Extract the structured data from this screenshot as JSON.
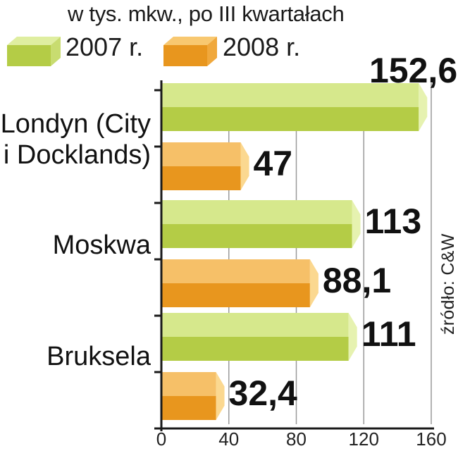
{
  "subtitle": "w tys. mkw., po III kwartałach",
  "source": "źródło: C&W",
  "legend": [
    {
      "label": "2007 r.",
      "icon": "green-box-icon"
    },
    {
      "label": "2008 r.",
      "icon": "orange-box-icon"
    }
  ],
  "colors": {
    "2007 r.": {
      "top": "#d6e88c",
      "front": "#b4cc46",
      "side": "#e6f2b0"
    },
    "2008 r.": {
      "top": "#f6c068",
      "front": "#e8961e",
      "side": "#fbd890"
    }
  },
  "chart_data": {
    "type": "bar",
    "orientation": "horizontal",
    "subtitle": "w tys. mkw., po III kwartałach",
    "categories": [
      "Londyn (City\ni Docklands)",
      "Moskwa",
      "Bruksela"
    ],
    "series": [
      {
        "name": "2007 r.",
        "values": [
          152.6,
          113,
          111
        ]
      },
      {
        "name": "2008 r.",
        "values": [
          47,
          88.1,
          32.4
        ]
      }
    ],
    "value_labels": {
      "2007 r.": [
        "152,6",
        "113",
        "111"
      ],
      "2008 r.": [
        "47",
        "88,1",
        "32,4"
      ]
    },
    "xlim": [
      0,
      160
    ],
    "xticks": [
      0,
      40,
      80,
      120,
      160
    ],
    "xtick_labels": [
      "0",
      "40",
      "80",
      "120",
      "160"
    ],
    "grid": true
  }
}
